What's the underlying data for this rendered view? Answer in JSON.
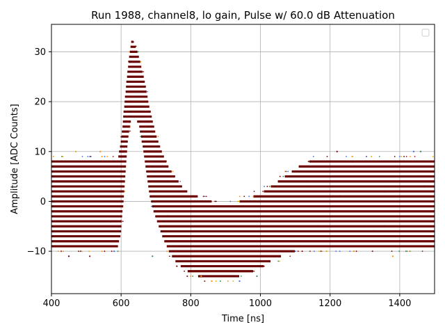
{
  "chart_data": {
    "type": "scatter",
    "title": "Run 1988, channel8, lo gain, Pulse w/ 60.0 dB Attenuation",
    "xlabel": "Time [ns]",
    "ylabel": "Amplitude [ADC Counts]",
    "xlim": [
      400,
      1500
    ],
    "ylim": [
      -18.5,
      35.5
    ],
    "xticks": [
      400,
      600,
      800,
      1000,
      1200,
      1400
    ],
    "yticks": [
      -10,
      0,
      10,
      20,
      30
    ],
    "ytick_labels": [
      "−10",
      "0",
      "10",
      "20",
      "30"
    ],
    "grid": true,
    "legend": {
      "placement": "top-right",
      "entries": []
    },
    "colors": {
      "main": "#6b0000",
      "outlier_palette": [
        "#6b0000",
        "#8b1a1a",
        "#e6a800",
        "#ff8c00",
        "#4169e1",
        "#2e8b57"
      ]
    },
    "pulse_profile": {
      "description": "per-time band of integer ADC values recorded across many events",
      "time_ns": [
        400,
        590,
        600,
        610,
        620,
        630,
        640,
        650,
        660,
        670,
        680,
        690,
        700,
        710,
        720,
        740,
        760,
        780,
        800,
        840,
        880,
        920,
        960,
        1000,
        1040,
        1080,
        1120,
        1160,
        1500
      ],
      "band_max": [
        8,
        8,
        12,
        20,
        27,
        32,
        31,
        29,
        26,
        23,
        19,
        16,
        13,
        11,
        9,
        6,
        4,
        2,
        1,
        0,
        -1,
        -1,
        0,
        1,
        3,
        5,
        7,
        8,
        8
      ],
      "band_min": [
        -9,
        -9,
        -6,
        3,
        13,
        17,
        17,
        16,
        12,
        7,
        2,
        -1,
        -3,
        -5,
        -7,
        -10,
        -12,
        -13,
        -14,
        -15,
        -15,
        -15,
        -14,
        -13,
        -11,
        -10,
        -9,
        -9,
        -9
      ]
    },
    "sparse_points": [
      {
        "x": 450,
        "y": -11
      },
      {
        "x": 510,
        "y": -11
      },
      {
        "x": 470,
        "y": 10
      },
      {
        "x": 540,
        "y": 10
      },
      {
        "x": 580,
        "y": -10
      },
      {
        "x": 690,
        "y": -11
      },
      {
        "x": 760,
        "y": -13
      },
      {
        "x": 790,
        "y": -15
      },
      {
        "x": 830,
        "y": -15
      },
      {
        "x": 860,
        "y": -16
      },
      {
        "x": 940,
        "y": -16
      },
      {
        "x": 990,
        "y": -15
      },
      {
        "x": 1010,
        "y": -13
      },
      {
        "x": 1120,
        "y": -10
      },
      {
        "x": 1190,
        "y": -10
      },
      {
        "x": 1380,
        "y": -11
      },
      {
        "x": 1440,
        "y": 10
      },
      {
        "x": 1460,
        "y": 10
      },
      {
        "x": 1220,
        "y": 10
      }
    ]
  }
}
